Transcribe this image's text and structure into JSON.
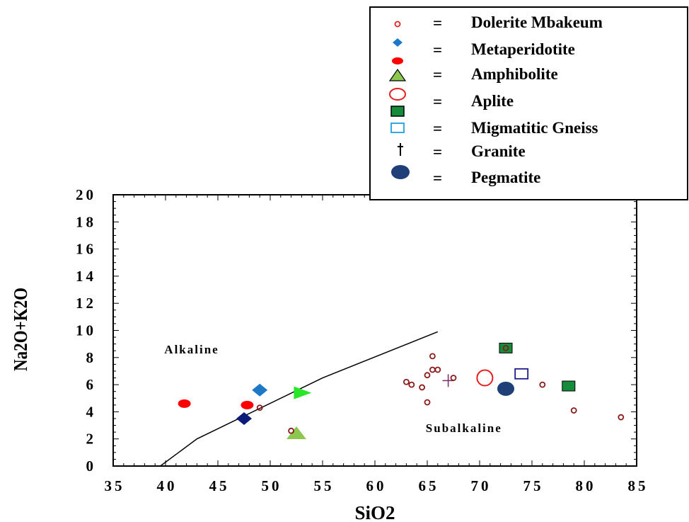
{
  "chart_data": {
    "type": "scatter",
    "title": "",
    "xlabel": "SiO2",
    "ylabel": "Na2O+K2O",
    "xlim": [
      35,
      85
    ],
    "ylim": [
      0,
      20
    ],
    "x_ticks": [
      "35",
      "40",
      "45",
      "50",
      "55",
      "60",
      "65",
      "70",
      "75",
      "80",
      "85"
    ],
    "y_ticks": [
      "0",
      "2",
      "4",
      "6",
      "8",
      "10",
      "12",
      "14",
      "16",
      "18",
      "20"
    ],
    "grid": false,
    "legend_position": "top-right",
    "legend_separator": "=",
    "region_labels": [
      {
        "text": "Alkaline",
        "x": 42.5,
        "y": 8.3
      },
      {
        "text": "Subalkaline",
        "x": 68.5,
        "y": 2.5
      }
    ],
    "boundary_line": [
      [
        39.5,
        0
      ],
      [
        43,
        2
      ],
      [
        55,
        6.5
      ],
      [
        66,
        9.9
      ]
    ],
    "series": [
      {
        "name": "Dolerite Mbakeum",
        "marker": "circle-open-small",
        "color": "#8b1a1a",
        "points": [
          [
            63,
            6.2
          ],
          [
            63.5,
            6.0
          ],
          [
            64.5,
            5.8
          ],
          [
            65,
            6.7
          ],
          [
            65.5,
            7.1
          ],
          [
            66,
            7.1
          ],
          [
            65.5,
            8.1
          ],
          [
            65,
            4.7
          ],
          [
            67.5,
            6.5
          ],
          [
            72.5,
            8.7
          ],
          [
            76,
            6.0
          ],
          [
            79,
            4.1
          ],
          [
            83.5,
            3.6
          ],
          [
            49,
            4.3
          ],
          [
            52,
            2.6
          ]
        ]
      },
      {
        "name": "Metaperidotite",
        "marker": "diamond",
        "color": "#1e78c8",
        "points": [
          [
            49,
            5.6
          ]
        ]
      },
      {
        "name": "Amphibolite",
        "marker": "triangle",
        "color": "#8cc850",
        "points": [
          [
            52.5,
            2.4
          ]
        ]
      },
      {
        "name": "Aplite",
        "marker": "circle-open-large",
        "color": "#e62020",
        "points": [
          [
            70.5,
            6.5
          ]
        ]
      },
      {
        "name": "Migmatitic Gneiss",
        "marker": "square-filled",
        "color": "#158c3c",
        "points": [
          [
            72.5,
            8.7
          ],
          [
            78.5,
            5.9
          ]
        ]
      },
      {
        "name": "Migmatitic Gneiss",
        "marker": "square-open",
        "color": "#1ea0dc",
        "legend_only": true,
        "points": []
      },
      {
        "name": "Granite",
        "marker": "cross",
        "color": "#7a2a6a",
        "points": [
          [
            67,
            6.3
          ]
        ]
      },
      {
        "name": "Pegmatite",
        "marker": "ellipse-filled",
        "color": "#1e3f78",
        "points": [
          [
            72.5,
            5.7
          ]
        ]
      },
      {
        "name": "",
        "marker": "ellipse-red",
        "color": "#ff0000",
        "unlisted": true,
        "points": [
          [
            41.8,
            4.6
          ],
          [
            47.8,
            4.5
          ]
        ]
      },
      {
        "name": "",
        "marker": "diamond",
        "color": "#0a1a78",
        "unlisted": true,
        "points": [
          [
            47.5,
            3.5
          ]
        ]
      },
      {
        "name": "",
        "marker": "triangle-right",
        "color": "#28e628",
        "unlisted": true,
        "points": [
          [
            53,
            5.4
          ]
        ]
      },
      {
        "name": "",
        "marker": "square-open",
        "color": "#1a1a8c",
        "unlisted": true,
        "points": [
          [
            74,
            6.8
          ]
        ]
      }
    ],
    "legend": [
      {
        "label": "Dolerite Mbakeum",
        "marker": "circle-open-small",
        "color": "#e62020"
      },
      {
        "label": "Metaperidotite",
        "marker": "diamond",
        "color": "#1e78c8"
      },
      {
        "label": "Amphibolite",
        "marker": "ellipse-red",
        "color": "#ff0000"
      },
      {
        "label": "Amphibolite",
        "marker": "triangle",
        "color": "#8cc850"
      },
      {
        "label": "Aplite",
        "marker": "circle-open-large",
        "color": "#e62020"
      },
      {
        "label": "Migmatitic Gneiss",
        "marker": "square-filled",
        "color": "#158c3c"
      },
      {
        "label": "Migmatitic Gneiss",
        "marker": "square-open",
        "color": "#1ea0dc"
      },
      {
        "label": " Granite",
        "marker": "dagger",
        "color": "#000000"
      },
      {
        "label": "Pegmatite",
        "marker": "ellipse-filled",
        "color": "#1e3f78"
      }
    ],
    "legend_rows": [
      {
        "label": "Dolerite Mbakeum",
        "markers": [
          "circle-open-small"
        ]
      },
      {
        "label": "Metaperidotite",
        "markers": [
          "diamond",
          "ellipse-red"
        ]
      },
      {
        "label": "Amphibolite",
        "markers": [
          "triangle"
        ]
      },
      {
        "label": "Aplite",
        "markers": [
          "circle-open-large",
          "square-filled"
        ]
      },
      {
        "label": "Migmatitic Gneiss",
        "markers": [
          "square-open"
        ]
      },
      {
        "label": " Granite",
        "markers": [
          "dagger"
        ]
      },
      {
        "label": "Pegmatite",
        "markers": [
          "ellipse-filled"
        ]
      }
    ]
  }
}
